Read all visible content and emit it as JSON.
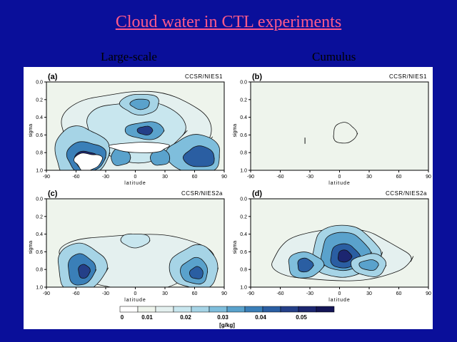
{
  "slide": {
    "title": "Cloud water in CTL experiments",
    "columns": [
      "Large-scale",
      "Cumulus"
    ]
  },
  "chart_data": [
    {
      "type": "heatmap",
      "panel_label": "(a)",
      "model": "CCSR/NIES1",
      "column": "Large-scale",
      "xlabel": "latitude",
      "ylabel": "sigma",
      "xlim": [
        -90,
        90
      ],
      "ylim": [
        1.0,
        0.0
      ],
      "xticks": [
        "-90",
        "-60",
        "-30",
        "0",
        "30",
        "60",
        "90"
      ],
      "yticks": [
        "0.0",
        "0.2",
        "0.4",
        "0.6",
        "0.8",
        "1.0"
      ],
      "max_regions": [
        {
          "lat": -50,
          "sigma": 0.85,
          "value": 0.05
        },
        {
          "lat": 10,
          "sigma": 0.55,
          "value": 0.04
        },
        {
          "lat": 60,
          "sigma": 0.85,
          "value": 0.045
        },
        {
          "lat": 5,
          "sigma": 0.25,
          "value": 0.03
        }
      ]
    },
    {
      "type": "heatmap",
      "panel_label": "(b)",
      "model": "CCSR/NIES1",
      "column": "Cumulus",
      "xlabel": "latitude",
      "ylabel": "sigma",
      "xlim": [
        -90,
        90
      ],
      "ylim": [
        1.0,
        0.0
      ],
      "xticks": [
        "-90",
        "-60",
        "-30",
        "0",
        "30",
        "60",
        "90"
      ],
      "yticks": [
        "0.0",
        "0.2",
        "0.4",
        "0.6",
        "0.8",
        "1.0"
      ],
      "max_regions": [
        {
          "lat": 5,
          "sigma": 0.6,
          "value": 0.001
        }
      ]
    },
    {
      "type": "heatmap",
      "panel_label": "(c)",
      "model": "CCSR/NIES2a",
      "column": "Large-scale",
      "xlabel": "latitude",
      "ylabel": "sigma",
      "xlim": [
        -90,
        90
      ],
      "ylim": [
        1.0,
        0.0
      ],
      "xticks": [
        "-90",
        "-60",
        "-30",
        "0",
        "30",
        "60",
        "90"
      ],
      "yticks": [
        "0.0",
        "0.2",
        "0.4",
        "0.6",
        "0.8",
        "1.0"
      ],
      "max_regions": [
        {
          "lat": -55,
          "sigma": 0.8,
          "value": 0.04
        },
        {
          "lat": 60,
          "sigma": 0.8,
          "value": 0.035
        },
        {
          "lat": 0,
          "sigma": 0.45,
          "value": 0.015
        }
      ]
    },
    {
      "type": "heatmap",
      "panel_label": "(d)",
      "model": "CCSR/NIES2a",
      "column": "Cumulus",
      "xlabel": "latitude",
      "ylabel": "sigma",
      "xlim": [
        -90,
        90
      ],
      "ylim": [
        1.0,
        0.0
      ],
      "xticks": [
        "-90",
        "-60",
        "-30",
        "0",
        "30",
        "60",
        "90"
      ],
      "yticks": [
        "0.0",
        "0.2",
        "0.4",
        "0.6",
        "0.8",
        "1.0"
      ],
      "max_regions": [
        {
          "lat": 5,
          "sigma": 0.65,
          "value": 0.05
        },
        {
          "lat": -35,
          "sigma": 0.75,
          "value": 0.035
        },
        {
          "lat": 30,
          "sigma": 0.75,
          "value": 0.02
        }
      ]
    }
  ],
  "colorbar": {
    "unit": "[g/kg]",
    "tick_labels": [
      "0",
      "0.01",
      "0.02",
      "0.03",
      "0.04",
      "0.05"
    ],
    "colors": [
      "#ffffff",
      "#eef4ec",
      "#e4f0ef",
      "#c8e6ee",
      "#a6d4e6",
      "#7fbedc",
      "#5aa2cc",
      "#3a7fb8",
      "#2a5ea2",
      "#243f88",
      "#1c2670",
      "#141556"
    ]
  }
}
